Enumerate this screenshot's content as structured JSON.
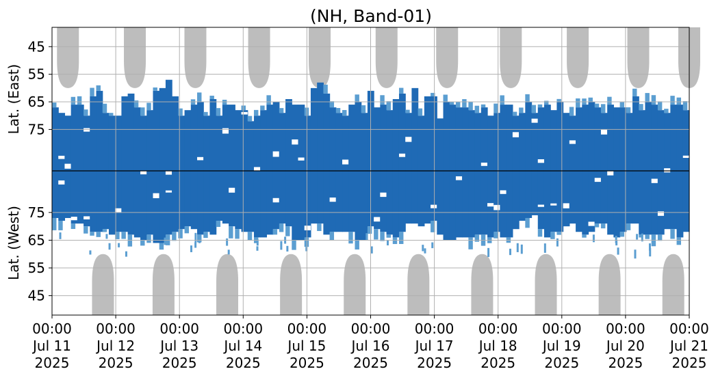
{
  "chart_data": {
    "type": "heatmap",
    "title": "(NH, Band-01)",
    "ylabel_top": "Lat. (East)",
    "ylabel_bottom": "Lat. (West)",
    "x_ticks": [
      {
        "day": 0,
        "time": "00:00",
        "date": "Jul 11",
        "year": "2025"
      },
      {
        "day": 1,
        "time": "00:00",
        "date": "Jul 12",
        "year": "2025"
      },
      {
        "day": 2,
        "time": "00:00",
        "date": "Jul 13",
        "year": "2025"
      },
      {
        "day": 3,
        "time": "00:00",
        "date": "Jul 14",
        "year": "2025"
      },
      {
        "day": 4,
        "time": "00:00",
        "date": "Jul 15",
        "year": "2025"
      },
      {
        "day": 5,
        "time": "00:00",
        "date": "Jul 16",
        "year": "2025"
      },
      {
        "day": 6,
        "time": "00:00",
        "date": "Jul 17",
        "year": "2025"
      },
      {
        "day": 7,
        "time": "00:00",
        "date": "Jul 18",
        "year": "2025"
      },
      {
        "day": 8,
        "time": "00:00",
        "date": "Jul 19",
        "year": "2025"
      },
      {
        "day": 9,
        "time": "00:00",
        "date": "Jul 20",
        "year": "2025"
      },
      {
        "day": 10,
        "time": "00:00",
        "date": "Jul 21",
        "year": "2025"
      }
    ],
    "y_ticks_top": [
      "45",
      "55",
      "65",
      "75"
    ],
    "y_ticks_bottom": [
      "75",
      "65",
      "55",
      "45"
    ],
    "lat_range_top": [
      38,
      90
    ],
    "lat_range_bottom": [
      90,
      38
    ],
    "grid": true,
    "colors": {
      "strong": "#1f6ab5",
      "light": "#5b9ed1",
      "gray": "#bdbdbd",
      "divider": "#000000",
      "grid": "#b0b0b0"
    },
    "gray_top_centers_day": [
      0.25,
      1.3,
      2.25,
      3.25,
      4.2,
      5.25,
      6.2,
      7.2,
      8.25,
      9.2,
      10.0
    ],
    "gray_bottom_centers_day": [
      0.8,
      1.75,
      2.75,
      3.75,
      4.75,
      5.75,
      6.75,
      7.75,
      8.75,
      9.75
    ],
    "gray_edge_lat": 60,
    "blue_band": {
      "east_edge_lat": [
        67,
        69,
        70,
        66,
        66,
        70,
        63,
        61,
        69,
        70,
        70,
        63,
        62,
        67,
        70,
        68,
        61,
        60,
        57,
        63,
        70,
        68,
        66,
        65,
        70,
        64,
        70,
        66,
        66,
        68,
        68,
        72,
        70,
        68,
        66,
        65,
        69,
        64,
        66,
        66,
        70,
        60,
        58,
        62,
        67,
        69,
        70,
        66,
        65,
        69,
        61,
        67,
        66,
        68,
        64,
        62,
        69,
        60,
        70,
        63,
        63,
        71,
        65,
        66,
        67,
        67,
        68,
        69,
        67,
        70,
        69,
        66,
        66,
        70,
        69,
        65,
        69,
        67,
        66,
        68,
        65,
        69,
        70,
        67,
        66,
        65,
        67,
        69,
        66,
        67,
        67,
        69,
        63,
        68,
        65,
        66,
        68,
        69,
        66,
        66,
        68
      ],
      "west_edge_lat": [
        73,
        72,
        73,
        71,
        71,
        70,
        68,
        68,
        69,
        67,
        68,
        68,
        67,
        66,
        65,
        67,
        64,
        64,
        67,
        68,
        69,
        70,
        69,
        67,
        68,
        67,
        72,
        71,
        70,
        69,
        68,
        68,
        66,
        66,
        67,
        69,
        71,
        70,
        65,
        65,
        66,
        71,
        71,
        67,
        68,
        68,
        68,
        68,
        65,
        65,
        70,
        69,
        68,
        67,
        66,
        68,
        71,
        71,
        70,
        71,
        72,
        67,
        65,
        65,
        66,
        66,
        66,
        67,
        67,
        66,
        68,
        66,
        66,
        69,
        72,
        73,
        74,
        69,
        66,
        68,
        68,
        70,
        71,
        68,
        67,
        68,
        71,
        71,
        67,
        66,
        68,
        71,
        71,
        67,
        67,
        67,
        67,
        69,
        69,
        66,
        68
      ]
    }
  }
}
